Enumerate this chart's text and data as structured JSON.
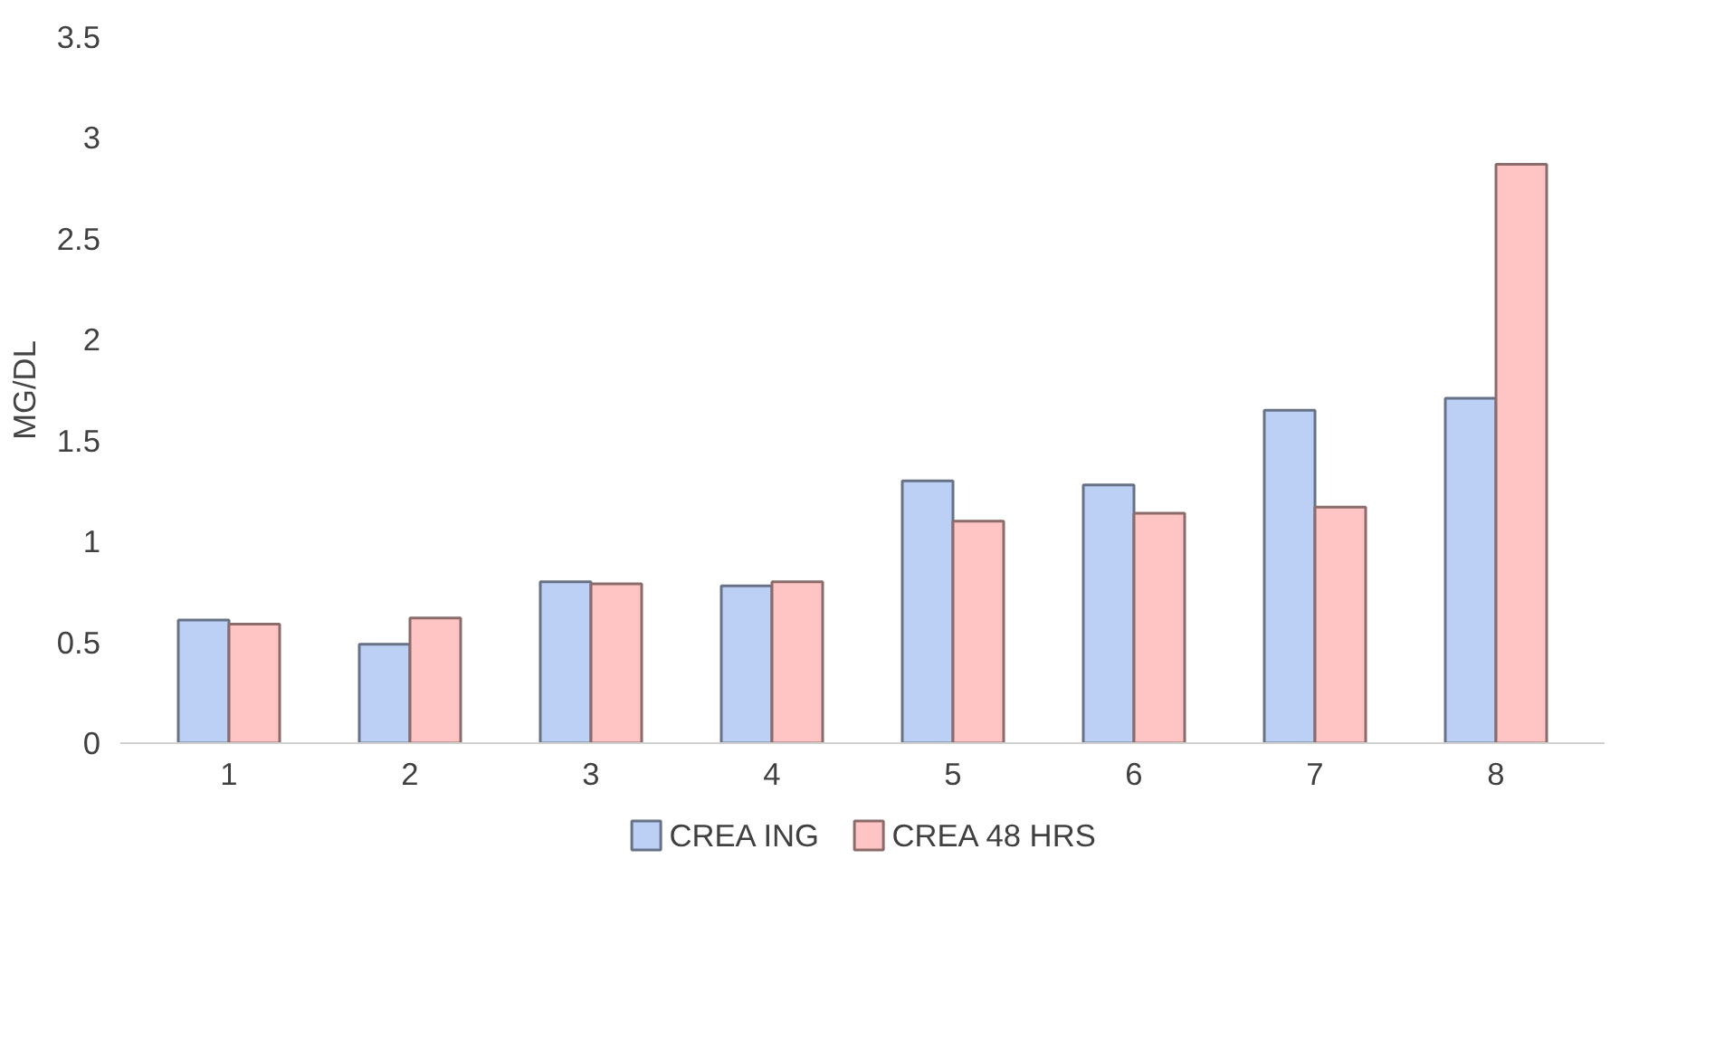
{
  "chart_data": {
    "type": "bar",
    "ylabel": "MG/DL",
    "categories": [
      "1",
      "2",
      "3",
      "4",
      "5",
      "6",
      "7",
      "8"
    ],
    "series": [
      {
        "name": "CREA ING",
        "color": "#bcd0f5",
        "values": [
          0.61,
          0.49,
          0.8,
          0.78,
          1.3,
          1.28,
          1.65,
          1.71
        ]
      },
      {
        "name": "CREA 48 HRS",
        "color": "#ffc4c4",
        "values": [
          0.59,
          0.62,
          0.79,
          0.8,
          1.1,
          1.14,
          1.17,
          2.87
        ]
      }
    ],
    "ylim": [
      0,
      3.5
    ],
    "yticks": [
      0,
      0.5,
      1,
      1.5,
      2,
      2.5,
      3,
      3.5
    ],
    "grid": false,
    "legend": "bottom"
  }
}
